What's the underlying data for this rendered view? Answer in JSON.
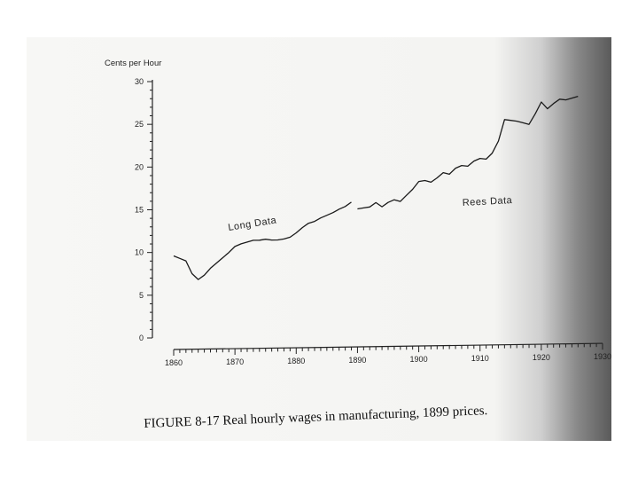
{
  "chart_data": {
    "type": "line",
    "ylabel": "Cents per Hour",
    "xlabel": "",
    "title": "",
    "xlim": [
      1860,
      1930
    ],
    "ylim": [
      0,
      30
    ],
    "xticks": [
      "1860",
      "1870",
      "1880",
      "1890",
      "1900",
      "1910",
      "1920",
      "1930"
    ],
    "yticks": [
      "0",
      "5",
      "10",
      "15",
      "20",
      "25",
      "30"
    ],
    "series": [
      {
        "name": "Long Data",
        "x": [
          1860,
          1861,
          1862,
          1863,
          1864,
          1865,
          1866,
          1867,
          1868,
          1869,
          1870,
          1871,
          1872,
          1873,
          1874,
          1875,
          1876,
          1877,
          1878,
          1879,
          1880,
          1881,
          1882,
          1883,
          1884,
          1885,
          1886,
          1887,
          1888,
          1889
        ],
        "y": [
          9.6,
          9.3,
          9.0,
          7.5,
          6.8,
          7.3,
          8.1,
          8.7,
          9.3,
          9.9,
          10.6,
          10.9,
          11.1,
          11.3,
          11.3,
          11.4,
          11.3,
          11.3,
          11.4,
          11.6,
          12.1,
          12.7,
          13.2,
          13.4,
          13.8,
          14.1,
          14.4,
          14.8,
          15.1,
          15.6
        ]
      },
      {
        "name": "Rees Data",
        "x": [
          1890,
          1891,
          1892,
          1893,
          1894,
          1895,
          1896,
          1897,
          1898,
          1899,
          1900,
          1901,
          1902,
          1903,
          1904,
          1905,
          1906,
          1907,
          1908,
          1909,
          1910,
          1911,
          1912,
          1913,
          1914,
          1915,
          1916,
          1917,
          1918,
          1919,
          1920,
          1921,
          1922,
          1923,
          1924,
          1925,
          1926
        ],
        "y": [
          14.8,
          14.9,
          15.0,
          15.5,
          15.0,
          15.5,
          15.8,
          15.6,
          16.3,
          17.0,
          17.9,
          18.0,
          17.8,
          18.3,
          18.9,
          18.7,
          19.4,
          19.7,
          19.6,
          20.2,
          20.5,
          20.4,
          21.1,
          22.5,
          25.0,
          24.9,
          24.8,
          24.6,
          24.4,
          25.6,
          27.0,
          26.2,
          26.8,
          27.3,
          27.2,
          27.4,
          27.6
        ]
      }
    ],
    "annotations": [
      "Long Data",
      "Rees Data"
    ]
  },
  "caption": "FIGURE 8-17  Real hourly wages in manufacturing, 1899 prices."
}
